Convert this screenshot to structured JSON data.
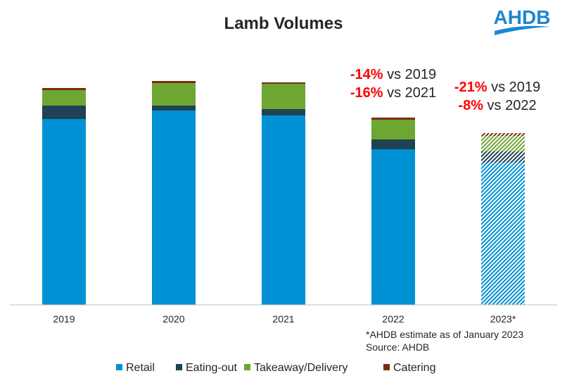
{
  "logo_text": "AHDB",
  "chart_data": {
    "type": "bar",
    "stacked": true,
    "title": "Lamb Volumes",
    "categories": [
      "2019",
      "2020",
      "2021",
      "2022",
      "2023*"
    ],
    "estimated_categories": [
      "2023*"
    ],
    "y_axis_shown": false,
    "units": "relative volume (no axis printed)",
    "series": [
      {
        "name": "Retail",
        "color": "#0091D5",
        "values": [
          264,
          276,
          269,
          221,
          202
        ]
      },
      {
        "name": "Eating-out",
        "color": "#1F4254",
        "values": [
          19,
          7,
          9,
          14,
          16
        ]
      },
      {
        "name": "Takeaway/Delivery",
        "color": "#6EA632",
        "values": [
          22,
          32,
          36,
          28,
          22
        ]
      },
      {
        "name": "Catering",
        "color": "#7B2D16",
        "values": [
          3,
          3,
          2,
          3,
          4
        ]
      }
    ],
    "annotations": [
      {
        "category": "2022",
        "lines": [
          {
            "pct": "-14%",
            "text": " vs 2019"
          },
          {
            "pct": "-16%",
            "text": " vs 2021"
          }
        ]
      },
      {
        "category": "2023*",
        "lines": [
          {
            "pct": "-21%",
            "text": " vs 2019"
          },
          {
            "pct": "-8%",
            "text": " vs 2022"
          }
        ]
      }
    ],
    "footnotes": [
      "*AHDB estimate as of January 2023",
      "Source: AHDB"
    ],
    "legend_position": "bottom",
    "annotation_color": "#FF0000",
    "grid": false
  }
}
